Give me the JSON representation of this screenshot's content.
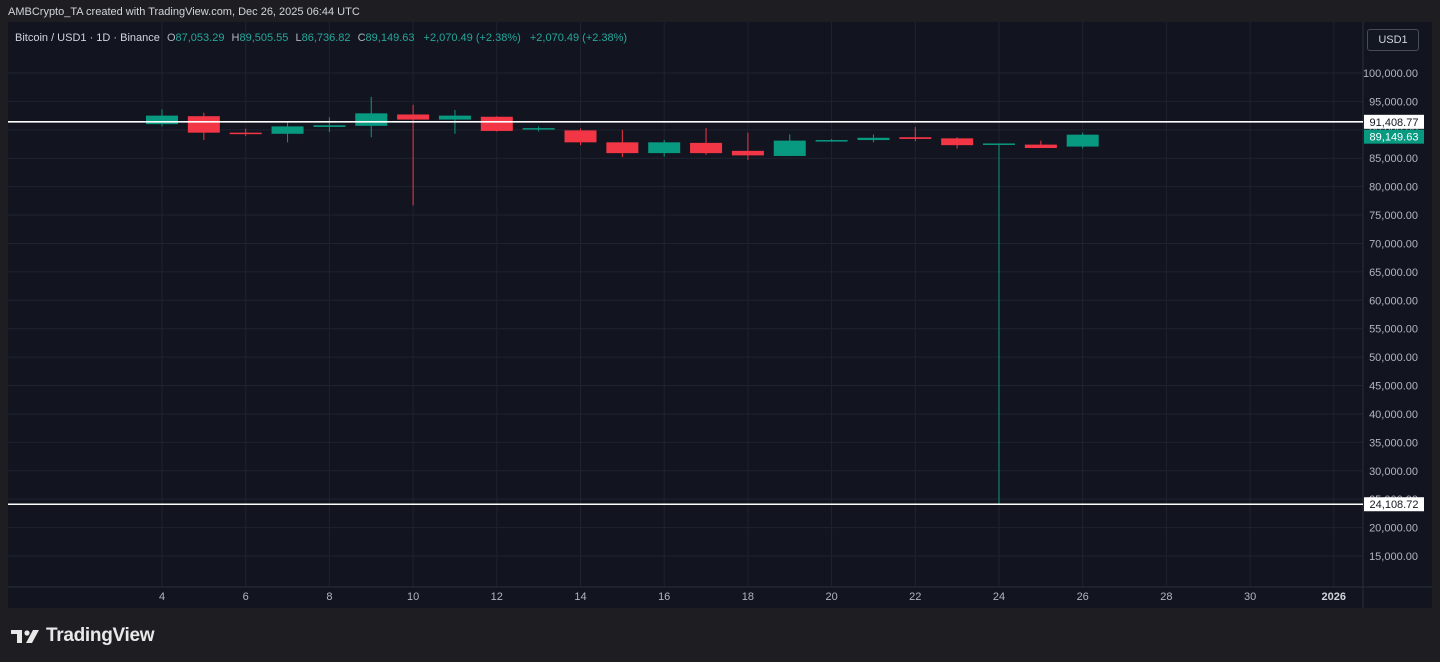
{
  "header": {
    "text": "AMBCrypto_TA created with TradingView.com, Dec 26, 2025 06:44 UTC"
  },
  "legend": {
    "symbol": "Bitcoin / USD1 · 1D · Binance",
    "open_label": "O",
    "open": "87,053.29",
    "high_label": "H",
    "high": "89,505.55",
    "low_label": "L",
    "low": "86,736.82",
    "close_label": "C",
    "close": "89,149.63",
    "change1": "+2,070.49 (+2.38%)",
    "change2": "+2,070.49 (+2.38%)"
  },
  "currency_button": "USD1",
  "footer": {
    "brand": "TradingView",
    "logo_icon": "tradingview-logo-icon"
  },
  "colors": {
    "up": "#089981",
    "down": "#f23645",
    "background": "#121520",
    "grid": "#1f2330",
    "axis_text": "#b2b5be"
  },
  "chart_data": {
    "type": "candlestick",
    "x_ticks": [
      "4",
      "6",
      "8",
      "10",
      "12",
      "14",
      "16",
      "18",
      "20",
      "22",
      "24",
      "26",
      "28",
      "30",
      "2026"
    ],
    "y_ticks": [
      "100,000.00",
      "95,000.00",
      "90,000.00",
      "85,000.00",
      "80,000.00",
      "75,000.00",
      "70,000.00",
      "65,000.00",
      "60,000.00",
      "55,000.00",
      "50,000.00",
      "45,000.00",
      "40,000.00",
      "35,000.00",
      "30,000.00",
      "25,000.00",
      "20,000.00",
      "15,000.00"
    ],
    "y_values": [
      100000,
      95000,
      90000,
      85000,
      80000,
      75000,
      70000,
      65000,
      60000,
      55000,
      50000,
      45000,
      40000,
      35000,
      30000,
      25000,
      20000,
      15000
    ],
    "ylim": [
      10000,
      103000
    ],
    "xlim_days": [
      0.3,
      33
    ],
    "candles": [
      {
        "day": 4,
        "open": 91000,
        "high": 93600,
        "low": 90600,
        "close": 92500
      },
      {
        "day": 5,
        "open": 92400,
        "high": 93000,
        "low": 88200,
        "close": 89500
      },
      {
        "day": 6,
        "open": 89500,
        "high": 90200,
        "low": 88900,
        "close": 89400
      },
      {
        "day": 7,
        "open": 89300,
        "high": 91500,
        "low": 87800,
        "close": 90600
      },
      {
        "day": 8,
        "open": 90500,
        "high": 92200,
        "low": 89600,
        "close": 90800
      },
      {
        "day": 9,
        "open": 90700,
        "high": 95800,
        "low": 88700,
        "close": 92900
      },
      {
        "day": 10,
        "open": 92700,
        "high": 94400,
        "low": 76700,
        "close": 91800
      },
      {
        "day": 11,
        "open": 91800,
        "high": 93500,
        "low": 89300,
        "close": 92500
      },
      {
        "day": 12,
        "open": 92300,
        "high": 92400,
        "low": 89700,
        "close": 89800
      },
      {
        "day": 13,
        "open": 90200,
        "high": 90600,
        "low": 89700,
        "close": 90300
      },
      {
        "day": 14,
        "open": 89900,
        "high": 90200,
        "low": 87300,
        "close": 87800
      },
      {
        "day": 15,
        "open": 87800,
        "high": 90000,
        "low": 85200,
        "close": 85900
      },
      {
        "day": 16,
        "open": 85900,
        "high": 88200,
        "low": 85300,
        "close": 87800
      },
      {
        "day": 17,
        "open": 87700,
        "high": 90300,
        "low": 85600,
        "close": 85900
      },
      {
        "day": 18,
        "open": 86300,
        "high": 89500,
        "low": 84700,
        "close": 85500
      },
      {
        "day": 19,
        "open": 85400,
        "high": 89200,
        "low": 85400,
        "close": 88100
      },
      {
        "day": 20,
        "open": 88000,
        "high": 88400,
        "low": 87900,
        "close": 88200
      },
      {
        "day": 21,
        "open": 88200,
        "high": 89200,
        "low": 87800,
        "close": 88600
      },
      {
        "day": 22,
        "open": 88700,
        "high": 90500,
        "low": 88000,
        "close": 88400
      },
      {
        "day": 23,
        "open": 88500,
        "high": 88700,
        "low": 86700,
        "close": 87300
      },
      {
        "day": 24,
        "open": 87400,
        "high": 87600,
        "low": 24108.72,
        "close": 87600
      },
      {
        "day": 25,
        "open": 87400,
        "high": 88100,
        "low": 86900,
        "close": 86800
      },
      {
        "day": 26,
        "open": 87053.29,
        "high": 89505.55,
        "low": 86736.82,
        "close": 89149.63
      }
    ],
    "horizontal_lines": [
      {
        "value": 91408.77,
        "label": "91,408.77"
      },
      {
        "value": 24108.72,
        "label": "24,108.72"
      }
    ],
    "last_price": {
      "value": 89149.63,
      "label": "89,149.63"
    }
  }
}
